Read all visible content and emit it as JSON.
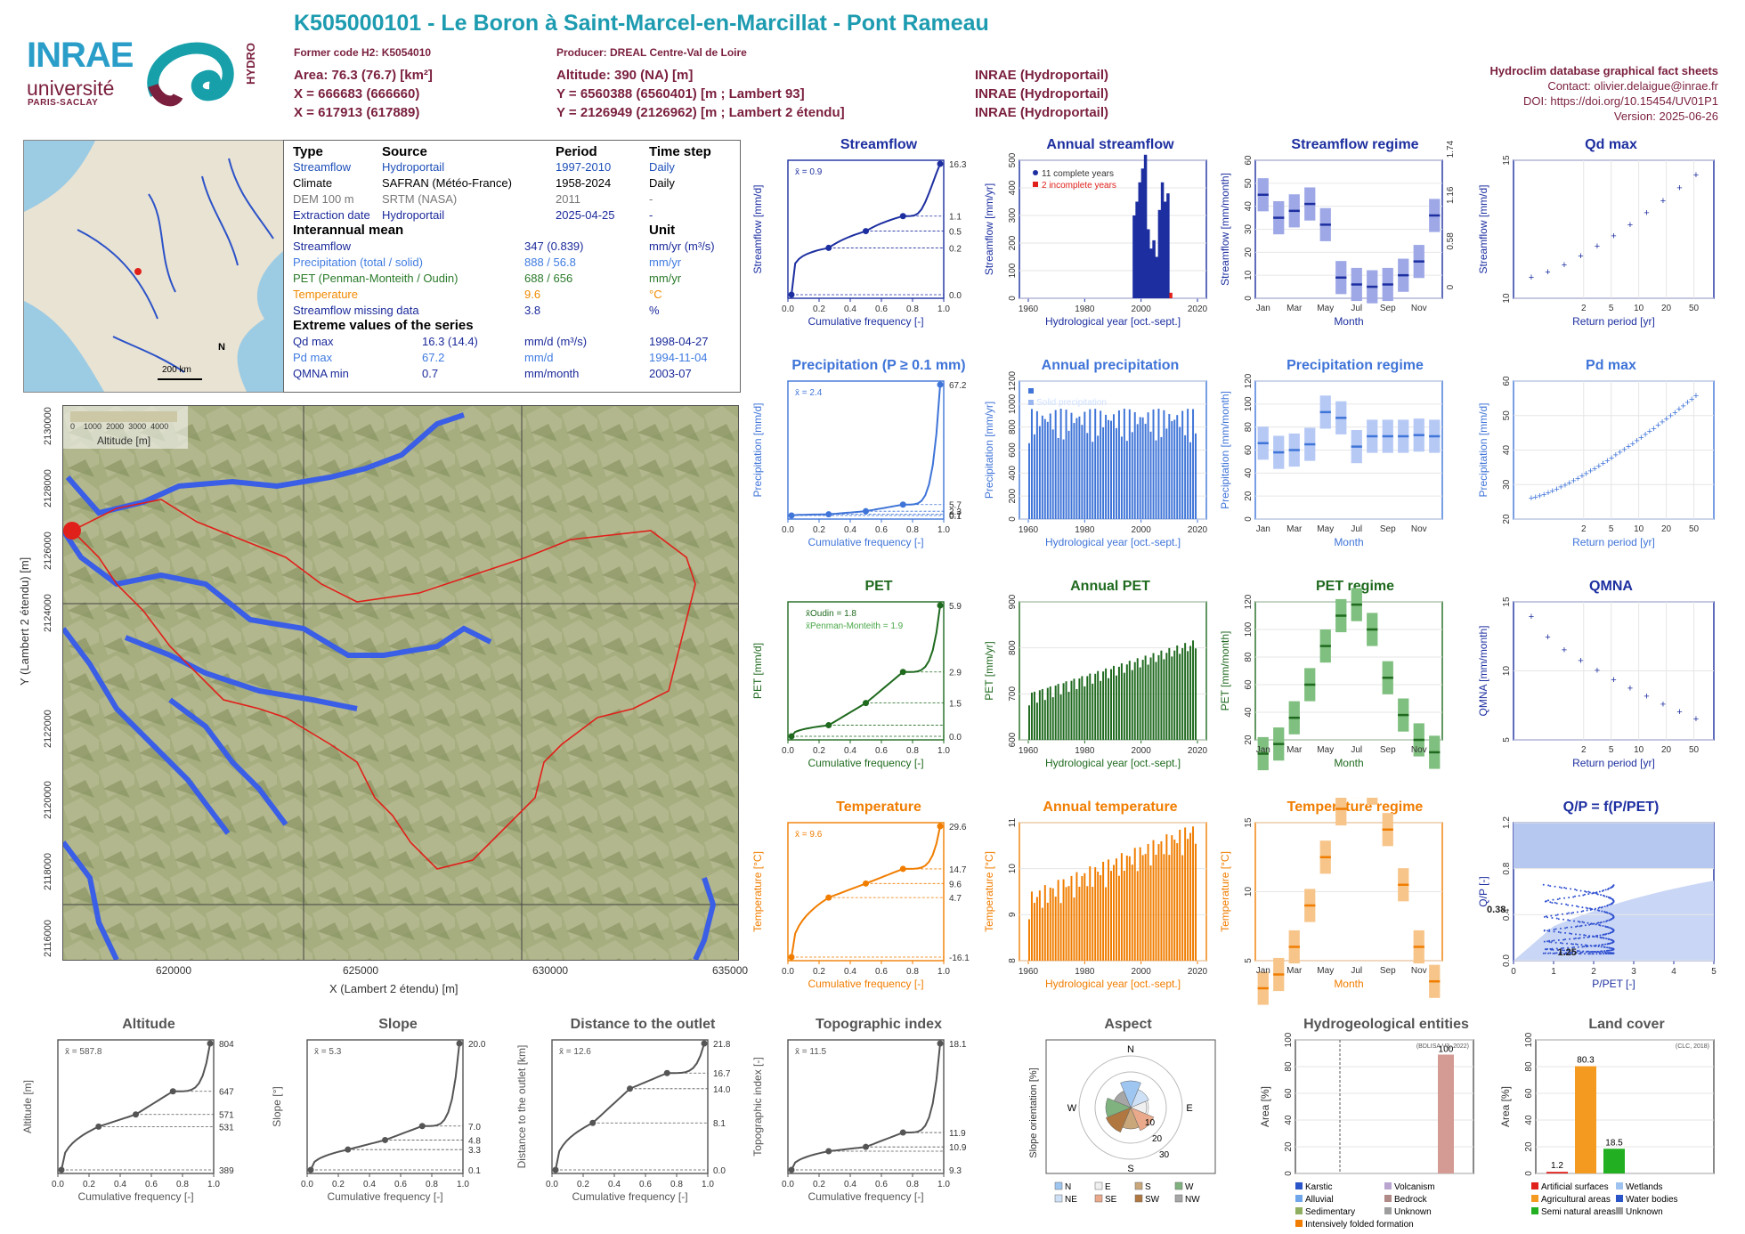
{
  "header": {
    "title": "K505000101 - Le Boron à Saint-Marcel-en-Marcillat - Pont Rameau",
    "former_code": "Former code H2: K5054010",
    "producer": "Producer: DREAL Centre-Val de Loire",
    "area": "Area: 76.3 (76.7) [km²]",
    "altitude": "Altitude: 390 (NA) [m]",
    "x93": "X = 666683 (666660)",
    "y93": "Y = 6560388 (6560401) [m ; Lambert 93]",
    "x2": "X = 617913 (617889)",
    "y2": "Y = 2126949 (2126962) [m ; Lambert 2 étendu]",
    "src1": "INRAE (Hydroportail)",
    "src2": "INRAE (Hydroportail)",
    "src3": "INRAE (Hydroportail)",
    "db_title": "Hydroclim database graphical fact sheets",
    "contact": "Contact: olivier.delaigue@inrae.fr",
    "doi": "DOI: https://doi.org/10.15454/UV01P1",
    "version": "Version: 2025-06-26"
  },
  "logos": {
    "inrae": "INRAE",
    "universite": "université",
    "paris_saclay": "PARIS-SACLAY",
    "hydro": "HYDRO"
  },
  "inset_map": {
    "scale": "200 km",
    "north": "N"
  },
  "info_table": {
    "h_type": "Type",
    "h_source": "Source",
    "h_period": "Period",
    "h_step": "Time step",
    "rows": [
      {
        "type": "Streamflow",
        "source": "Hydroportail",
        "period": "1997-2010",
        "step": "Daily"
      },
      {
        "type": "Climate",
        "source": "SAFRAN (Météo-France)",
        "period": "1958-2024",
        "step": "Daily"
      },
      {
        "type": "DEM 100 m",
        "source": "SRTM (NASA)",
        "period": "2011",
        "step": "-"
      },
      {
        "type": "Extraction date",
        "source": "Hydroportail",
        "period": "2025-04-25",
        "step": "-"
      }
    ],
    "h_interannual": "Interannual mean",
    "h_unit": "Unit",
    "means": [
      {
        "label": "Streamflow",
        "value": "347 (0.839)",
        "unit": "mm/yr (m³/s)"
      },
      {
        "label": "Precipitation (total / solid)",
        "value": "888 / 56.8",
        "unit": "mm/yr"
      },
      {
        "label": "PET (Penman-Monteith / Oudin)",
        "value": "688 / 656",
        "unit": "mm/yr"
      },
      {
        "label": "Temperature",
        "value": "9.6",
        "unit": "°C"
      },
      {
        "label": "Streamflow missing data",
        "value": "3.8",
        "unit": "%"
      }
    ],
    "h_extreme": "Extreme values of the series",
    "extremes": [
      {
        "label": "Qd max",
        "value": "16.3 (14.4)",
        "unit": "mm/d (m³/s)",
        "date": "1998-04-27"
      },
      {
        "label": "Pd max",
        "value": "67.2",
        "unit": "mm/d",
        "date": "1994-11-04"
      },
      {
        "label": "QMNA min",
        "value": "0.7",
        "unit": "mm/month",
        "date": "2003-07"
      }
    ]
  },
  "map": {
    "xlabel": "X (Lambert 2 étendu) [m]",
    "ylabel": "Y (Lambert 2 étendu) [m]",
    "xticks": [
      "620000",
      "625000",
      "630000",
      "635000"
    ],
    "yticks": [
      "2130000",
      "2128000",
      "2126000",
      "2124000",
      "2122000",
      "2120000",
      "2118000",
      "2116000"
    ],
    "legend_title": "Altitude [m]",
    "legend_ticks": [
      "0",
      "1000",
      "2000",
      "3000",
      "4000"
    ]
  },
  "colors": {
    "flow": "#1d2fa0",
    "precip": "#3f74d8",
    "pet": "#1f6a1f",
    "temp": "#f07d00",
    "grey": "#555555",
    "title_teal": "#1d9bb0",
    "brand": "#7a1f3d"
  },
  "chart_data": [
    {
      "id": "streamflow",
      "type": "line",
      "title": "Streamflow",
      "xlabel": "Cumulative frequency [-]",
      "ylabel": "Streamflow [mm/d]",
      "mean_label": "x̄ = 0.9",
      "right_ticks": [
        "16.3",
        "1.1",
        "0.5",
        "0.2",
        "0.0"
      ],
      "x": [
        0,
        0.25,
        0.5,
        0.75,
        1
      ],
      "y": [
        0.0,
        0.2,
        0.5,
        1.1,
        16.3
      ],
      "xlim": [
        0,
        1
      ],
      "log": true
    },
    {
      "id": "annual_streamflow",
      "type": "bar",
      "title": "Annual streamflow",
      "xlabel": "Hydrological year [oct.-sept.]",
      "ylabel": "Streamflow [mm/yr]",
      "legend": [
        "11 complete years",
        "2 incomplete years"
      ],
      "x": [
        1997,
        1998,
        1999,
        2000,
        2001,
        2002,
        2003,
        2004,
        2005,
        2006,
        2007,
        2008,
        2009,
        2010
      ],
      "values": [
        300,
        350,
        420,
        470,
        520,
        250,
        180,
        210,
        150,
        320,
        420,
        350,
        380,
        20
      ],
      "ylim": [
        0,
        500
      ],
      "xticks": [
        "1960",
        "1980",
        "2000",
        "2020"
      ],
      "yticks": [
        "0",
        "100",
        "200",
        "300",
        "400",
        "500"
      ]
    },
    {
      "id": "streamflow_regime",
      "type": "bar",
      "title": "Streamflow regime",
      "xlabel": "Month",
      "ylabel": "Streamflow [mm/month]",
      "y2label": "Streamflow [m³/s]",
      "categories": [
        "Jan",
        "Feb",
        "Mar",
        "Apr",
        "May",
        "Jun",
        "Jul",
        "Aug",
        "Sep",
        "Oct",
        "Nov",
        "Dec"
      ],
      "values": [
        45,
        35,
        38,
        41,
        32,
        9,
        6,
        5,
        6,
        10,
        16,
        36
      ],
      "ylim": [
        0,
        60
      ],
      "yticks": [
        "0",
        "10",
        "20",
        "30",
        "40",
        "50",
        "60"
      ],
      "y2ticks": [
        "0",
        "0.58",
        "1.16",
        "1.74"
      ]
    },
    {
      "id": "qd_max",
      "type": "scatter",
      "title": "Qd max",
      "xlabel": "Return period [yr]",
      "ylabel": "Streamflow [mm/d]",
      "xticks": [
        "2",
        "5",
        "10",
        "20",
        "50"
      ],
      "yticks": [
        "10",
        "15"
      ]
    },
    {
      "id": "precipitation",
      "type": "line",
      "title": "Precipitation (P ≥ 0.1 mm)",
      "xlabel": "Cumulative frequency [-]",
      "ylabel": "Precipitation [mm/d]",
      "mean_label": "x̄ = 2.4",
      "right_ticks": [
        "67.2",
        "5.7",
        "2.3",
        "0.7",
        "0.1"
      ],
      "x": [
        0,
        0.25,
        0.5,
        0.75,
        1
      ],
      "y": [
        0.1,
        0.7,
        2.3,
        5.7,
        67.2
      ]
    },
    {
      "id": "annual_precipitation",
      "type": "bar",
      "title": "Annual precipitation",
      "xlabel": "Hydrological year [oct.-sept.]",
      "ylabel": "Precipitation [mm/yr]",
      "legend": [
        "Total precipitation",
        "Solid precipitation"
      ],
      "xticks": [
        "1960",
        "1980",
        "2000",
        "2020"
      ],
      "yticks": [
        "0",
        "200",
        "400",
        "600",
        "800",
        "1000",
        "1200"
      ]
    },
    {
      "id": "precipitation_regime",
      "type": "bar",
      "title": "Precipitation regime",
      "xlabel": "Month",
      "ylabel": "Precipitation [mm/month]",
      "categories": [
        "Jan",
        "Feb",
        "Mar",
        "Apr",
        "May",
        "Jun",
        "Jul",
        "Aug",
        "Sep",
        "Oct",
        "Nov",
        "Dec"
      ],
      "values": [
        66,
        58,
        60,
        65,
        93,
        88,
        63,
        72,
        72,
        72,
        73,
        72
      ],
      "yticks": [
        "0",
        "20",
        "40",
        "60",
        "80",
        "100",
        "120"
      ]
    },
    {
      "id": "pd_max",
      "type": "scatter",
      "title": "Pd max",
      "xlabel": "Return period [yr]",
      "ylabel": "Precipitation [mm/d]",
      "xticks": [
        "2",
        "5",
        "10",
        "20",
        "50"
      ],
      "yticks": [
        "20",
        "30",
        "40",
        "50",
        "60"
      ]
    },
    {
      "id": "pet",
      "type": "line",
      "title": "PET",
      "xlabel": "Cumulative frequency [-]",
      "ylabel": "PET [mm/d]",
      "mean_oudin": "x̄Oudin = 1.8",
      "mean_pm": "x̄Penman-Monteith = 1.9",
      "right_ticks": [
        "5.9",
        "2.9",
        "1.5",
        "0.0"
      ],
      "x": [
        0,
        0.25,
        0.5,
        0.75,
        1
      ],
      "y": [
        0.0,
        0.5,
        1.5,
        2.9,
        5.9
      ]
    },
    {
      "id": "annual_pet",
      "type": "bar",
      "title": "Annual PET",
      "xlabel": "Hydrological year [oct.-sept.]",
      "ylabel": "PET [mm/yr]",
      "xticks": [
        "1960",
        "1980",
        "2000",
        "2020"
      ],
      "yticks": [
        "600",
        "700",
        "800",
        "900"
      ]
    },
    {
      "id": "pet_regime",
      "type": "bar",
      "title": "PET regime",
      "xlabel": "Month",
      "ylabel": "PET [mm/month]",
      "categories": [
        "Jan",
        "Feb",
        "Mar",
        "Apr",
        "May",
        "Jun",
        "Jul",
        "Aug",
        "Sep",
        "Oct",
        "Nov",
        "Dec"
      ],
      "values": [
        10,
        17,
        36,
        60,
        88,
        110,
        118,
        100,
        65,
        38,
        20,
        11
      ],
      "yticks": [
        "20",
        "40",
        "60",
        "80",
        "100",
        "120"
      ]
    },
    {
      "id": "qmna",
      "type": "scatter",
      "title": "QMNA",
      "xlabel": "Return period [yr]",
      "ylabel": "QMNA [mm/month]",
      "xticks": [
        "2",
        "5",
        "10",
        "20",
        "50"
      ],
      "yticks": [
        "5",
        "10",
        "15"
      ]
    },
    {
      "id": "temperature",
      "type": "line",
      "title": "Temperature",
      "xlabel": "Cumulative frequency [-]",
      "ylabel": "Temperature [°C]",
      "mean_label": "x̄ = 9.6",
      "right_ticks": [
        "29.6",
        "14.7",
        "9.6",
        "4.7",
        "-16.1"
      ],
      "x": [
        0,
        0.25,
        0.5,
        0.75,
        1
      ],
      "y": [
        -16.1,
        4.7,
        9.6,
        14.7,
        29.6
      ]
    },
    {
      "id": "annual_temperature",
      "type": "bar",
      "title": "Annual temperature",
      "xlabel": "Hydrological year [oct.-sept.]",
      "ylabel": "Temperature [°C]",
      "xticks": [
        "1960",
        "1980",
        "2000",
        "2020"
      ],
      "yticks": [
        "8",
        "9",
        "10",
        "11"
      ]
    },
    {
      "id": "temperature_regime",
      "type": "bar",
      "title": "Temperature regime",
      "xlabel": "Month",
      "ylabel": "Temperature [°C]",
      "categories": [
        "Jan",
        "Feb",
        "Mar",
        "Apr",
        "May",
        "Jun",
        "Jul",
        "Aug",
        "Sep",
        "Oct",
        "Nov",
        "Dec"
      ],
      "values": [
        3,
        4,
        6,
        9,
        12.5,
        16,
        18,
        17.5,
        14.5,
        10.5,
        6,
        3.5
      ],
      "yticks": [
        "5",
        "10",
        "15"
      ]
    },
    {
      "id": "qp_ppet",
      "type": "scatter",
      "title": "Q/P = f(P/PET)",
      "xlabel": "P/PET [-]",
      "ylabel": "Q/P [-]",
      "annot1": "0.38",
      "annot2": "1.25",
      "xticks": [
        "0",
        "1",
        "2",
        "3",
        "4",
        "5"
      ],
      "yticks": [
        "0.0",
        "0.4",
        "0.8",
        "1.2"
      ]
    },
    {
      "id": "altitude",
      "type": "line",
      "title": "Altitude",
      "xlabel": "Cumulative frequency [-]",
      "ylabel": "Altitude [m]",
      "mean_label": "x̄ = 587.8",
      "right_ticks": [
        "804",
        "647",
        "571",
        "531",
        "389"
      ],
      "x": [
        0,
        0.25,
        0.5,
        0.75,
        1
      ],
      "y": [
        389,
        531,
        571,
        647,
        804
      ]
    },
    {
      "id": "slope",
      "type": "line",
      "title": "Slope",
      "xlabel": "Cumulative frequency [-]",
      "ylabel": "Slope [°]",
      "mean_label": "x̄ = 5.3",
      "right_ticks": [
        "20.0",
        "7.0",
        "4.8",
        "3.3",
        "0.1"
      ],
      "x": [
        0,
        0.25,
        0.5,
        0.75,
        1
      ],
      "y": [
        0.1,
        3.3,
        4.8,
        7.0,
        20.0
      ]
    },
    {
      "id": "distance_outlet",
      "type": "line",
      "title": "Distance to the outlet",
      "xlabel": "Cumulative frequency [-]",
      "ylabel": "Distance to the outlet [km]",
      "mean_label": "x̄ = 12.6",
      "right_ticks": [
        "21.8",
        "16.7",
        "14.0",
        "8.1",
        "0.0"
      ],
      "x": [
        0,
        0.25,
        0.5,
        0.75,
        1
      ],
      "y": [
        0.0,
        8.1,
        14.0,
        16.7,
        21.8
      ]
    },
    {
      "id": "topographic_index",
      "type": "line",
      "title": "Topographic index",
      "xlabel": "Cumulative frequency [-]",
      "ylabel": "Topographic index [-]",
      "mean_label": "x̄ = 11.5",
      "right_ticks": [
        "18.1",
        "11.9",
        "10.9",
        "9.3"
      ],
      "x": [
        0,
        0.25,
        0.5,
        0.75,
        1
      ],
      "y": [
        9.3,
        10.6,
        10.9,
        11.9,
        18.1
      ]
    },
    {
      "id": "aspect",
      "type": "pie",
      "title": "Aspect",
      "ylabel": "Slope orientation [%]",
      "directions": [
        "N",
        "NE",
        "E",
        "SE",
        "S",
        "SW",
        "W",
        "NW"
      ],
      "rings": [
        "10",
        "20",
        "30"
      ],
      "legend": [
        "N",
        "NE",
        "E",
        "SE",
        "S",
        "SW",
        "W",
        "NW"
      ]
    },
    {
      "id": "hydrogeology",
      "type": "bar",
      "title": "Hydrogeological entities",
      "ylabel": "Area [%]",
      "source": "(BDLISA V3, 2022)",
      "values_label": "100",
      "legend": [
        "Karstic",
        "Alluvial",
        "Sedimentary",
        "Intensively folded formation",
        "Volcanism",
        "Bedrock",
        "Unknown"
      ]
    },
    {
      "id": "land_cover",
      "type": "bar",
      "title": "Land cover",
      "ylabel": "Area [%]",
      "source": "(CLC, 2018)",
      "categories": [
        "Artificial surfaces",
        "Agricultural areas",
        "Semi natural areas"
      ],
      "values": [
        1.2,
        80.3,
        18.5
      ],
      "value_labels": [
        "1.2",
        "80.3",
        "18.5"
      ],
      "legend": [
        "Artificial surfaces",
        "Agricultural areas",
        "Semi natural areas",
        "Wetlands",
        "Water bodies",
        "Unknown"
      ]
    }
  ]
}
